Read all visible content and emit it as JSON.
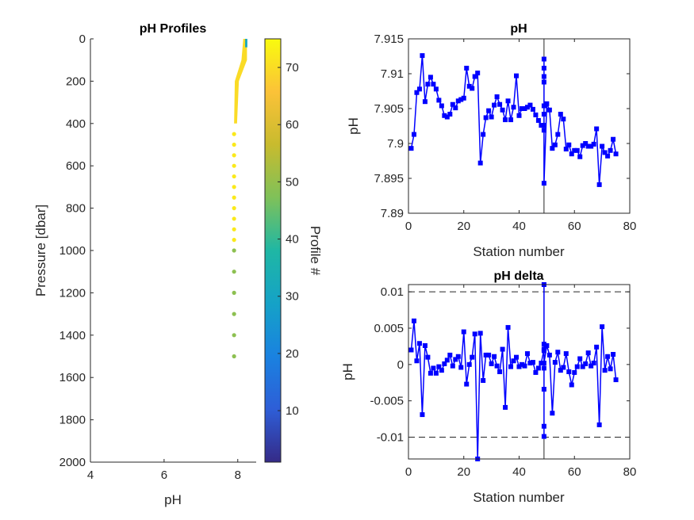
{
  "chart_data": [
    {
      "type": "scatter",
      "title": "pH Profiles",
      "xlabel": "pH",
      "ylabel": "Pressure [dbar]",
      "xlim": [
        4,
        8.5
      ],
      "ylim": [
        2000,
        0
      ],
      "y_reversed": true,
      "xticks": [
        "4",
        "6",
        "8"
      ],
      "yticks": [
        "0",
        "200",
        "400",
        "600",
        "800",
        "1000",
        "1200",
        "1400",
        "1600",
        "1800",
        "2000"
      ],
      "colorbar": {
        "label": "Profile #",
        "range": [
          1,
          75
        ],
        "ticks": [
          "10",
          "20",
          "30",
          "40",
          "50",
          "60",
          "70"
        ],
        "colormap": "parula"
      },
      "surface_band": {
        "pressure_from": 0,
        "pressure_to": 400,
        "ph_surface": [
          8.15,
          8.25
        ],
        "ph_at_400": [
          7.9,
          7.98
        ]
      },
      "deep_points": [
        {
          "pressure": 450,
          "ph": 7.9,
          "profile": 72
        },
        {
          "pressure": 500,
          "ph": 7.9,
          "profile": 72
        },
        {
          "pressure": 550,
          "ph": 7.9,
          "profile": 72
        },
        {
          "pressure": 600,
          "ph": 7.9,
          "profile": 72
        },
        {
          "pressure": 650,
          "ph": 7.9,
          "profile": 72
        },
        {
          "pressure": 700,
          "ph": 7.9,
          "profile": 72
        },
        {
          "pressure": 750,
          "ph": 7.9,
          "profile": 72
        },
        {
          "pressure": 800,
          "ph": 7.9,
          "profile": 72
        },
        {
          "pressure": 850,
          "ph": 7.9,
          "profile": 72
        },
        {
          "pressure": 900,
          "ph": 7.9,
          "profile": 72
        },
        {
          "pressure": 950,
          "ph": 7.9,
          "profile": 72
        },
        {
          "pressure": 1000,
          "ph": 7.9,
          "profile": 49
        },
        {
          "pressure": 1100,
          "ph": 7.9,
          "profile": 49
        },
        {
          "pressure": 1200,
          "ph": 7.9,
          "profile": 49
        },
        {
          "pressure": 1300,
          "ph": 7.9,
          "profile": 49
        },
        {
          "pressure": 1400,
          "ph": 7.9,
          "profile": 49
        },
        {
          "pressure": 1500,
          "ph": 7.9,
          "profile": 49
        }
      ]
    },
    {
      "type": "line",
      "title": "pH",
      "xlabel": "Station number",
      "ylabel": "pH",
      "xlim": [
        0,
        80
      ],
      "ylim": [
        7.89,
        7.915
      ],
      "xticks": [
        "0",
        "20",
        "40",
        "60",
        "80"
      ],
      "yticks": [
        "7.89",
        "7.895",
        "7.9",
        "7.905",
        "7.91",
        "7.915"
      ],
      "vline_x": 49,
      "series": [
        {
          "color": "#0000ff",
          "marker": "square",
          "x": [
            1,
            2,
            3,
            4,
            5,
            6,
            7,
            8,
            9,
            10,
            11,
            12,
            13,
            14,
            15,
            16,
            17,
            18,
            19,
            20,
            21,
            22,
            23,
            24,
            25,
            26,
            27,
            28,
            29,
            30,
            31,
            32,
            33,
            34,
            35,
            36,
            37,
            38,
            39,
            40,
            41,
            42,
            43,
            44,
            45,
            46,
            47,
            48,
            49,
            49,
            49,
            49,
            49,
            49,
            49,
            49,
            49,
            50,
            51,
            52,
            53,
            54,
            55,
            56,
            57,
            58,
            59,
            60,
            61,
            62,
            63,
            64,
            65,
            66,
            67,
            68,
            69,
            70,
            71,
            72,
            73,
            74,
            75
          ],
          "y": [
            7.8993,
            7.9013,
            7.9073,
            7.9078,
            7.9126,
            7.906,
            7.9085,
            7.9095,
            7.9085,
            7.9078,
            7.9062,
            7.9054,
            7.904,
            7.9038,
            7.9042,
            7.9056,
            7.9051,
            7.9061,
            7.9063,
            7.9065,
            7.9108,
            7.9082,
            7.9079,
            7.9096,
            7.9101,
            7.8972,
            7.9013,
            7.9037,
            7.9047,
            7.9038,
            7.9055,
            7.9067,
            7.9056,
            7.9048,
            7.9034,
            7.9061,
            7.9034,
            7.9052,
            7.9097,
            7.904,
            7.905,
            7.905,
            7.9052,
            7.9055,
            7.9049,
            7.9041,
            7.9033,
            7.9026,
            7.9026,
            7.9121,
            7.9108,
            7.9096,
            7.9088,
            7.9054,
            7.9042,
            7.9019,
            7.8943,
            7.9057,
            7.9048,
            7.8993,
            7.8998,
            7.9013,
            7.9042,
            7.9035,
            7.8992,
            7.8998,
            7.8985,
            7.899,
            7.899,
            7.8981,
            7.8997,
            7.9,
            7.8996,
            7.8996,
            7.8999,
            7.9021,
            7.8941,
            7.8996,
            7.8987,
            7.8982,
            7.899,
            7.9006,
            7.8985
          ]
        }
      ]
    },
    {
      "type": "line",
      "title": "pH delta",
      "xlabel": "Station number",
      "ylabel": "pH",
      "xlim": [
        0,
        80
      ],
      "ylim": [
        -0.013,
        0.011
      ],
      "xticks": [
        "0",
        "20",
        "40",
        "60",
        "80"
      ],
      "yticks": [
        "-0.01",
        "-0.005",
        "0",
        "0.005",
        "0.01"
      ],
      "hlines": [
        0.01,
        -0.01
      ],
      "vline_x": 49,
      "series": [
        {
          "color": "#0000ff",
          "marker": "square",
          "x": [
            1,
            2,
            3,
            4,
            5,
            6,
            7,
            8,
            9,
            10,
            11,
            12,
            13,
            14,
            15,
            16,
            17,
            18,
            19,
            20,
            21,
            22,
            23,
            24,
            25,
            26,
            27,
            28,
            29,
            30,
            31,
            32,
            33,
            34,
            35,
            36,
            37,
            38,
            39,
            40,
            41,
            42,
            43,
            44,
            45,
            46,
            47,
            48,
            49,
            49,
            49,
            49,
            49,
            49,
            49,
            49,
            49,
            50,
            51,
            52,
            53,
            54,
            55,
            56,
            57,
            58,
            59,
            60,
            61,
            62,
            63,
            64,
            65,
            66,
            67,
            68,
            69,
            70,
            71,
            72,
            73,
            74,
            75
          ],
          "y": [
            0.002,
            0.006,
            0.0005,
            0.0029,
            -0.0069,
            0.0026,
            0.001,
            -0.0012,
            -0.0005,
            -0.0012,
            -0.0003,
            -0.0008,
            0.0001,
            0.0006,
            0.0013,
            -0.0002,
            0.0007,
            0.0011,
            -0.0004,
            0.0045,
            -0.0027,
            0.0,
            0.001,
            0.0042,
            -0.013,
            0.0043,
            -0.0022,
            0.0013,
            0.0013,
            0.0001,
            0.0011,
            -0.0002,
            -0.001,
            0.0021,
            -0.0059,
            0.0051,
            -0.0003,
            0.0005,
            0.001,
            -0.0003,
            0.0,
            -0.0002,
            0.0015,
            0.0002,
            0.0003,
            -0.0011,
            -0.0005,
            0.0002,
            0.0021,
            0.011,
            0.0028,
            -0.0085,
            -0.0099,
            0.0019,
            -0.0005,
            -0.0034,
            0.0002,
            0.0026,
            0.0013,
            -0.0067,
            0.0003,
            0.0017,
            -0.0008,
            -0.0004,
            0.0015,
            -0.001,
            -0.0028,
            -0.0011,
            -0.0003,
            0.0008,
            -0.0003,
            0.0001,
            0.0016,
            -0.0002,
            0.0002,
            0.0024,
            -0.0083,
            0.0052,
            -0.0008,
            0.0011,
            -0.0006,
            0.0014,
            -0.0021
          ]
        }
      ]
    }
  ]
}
